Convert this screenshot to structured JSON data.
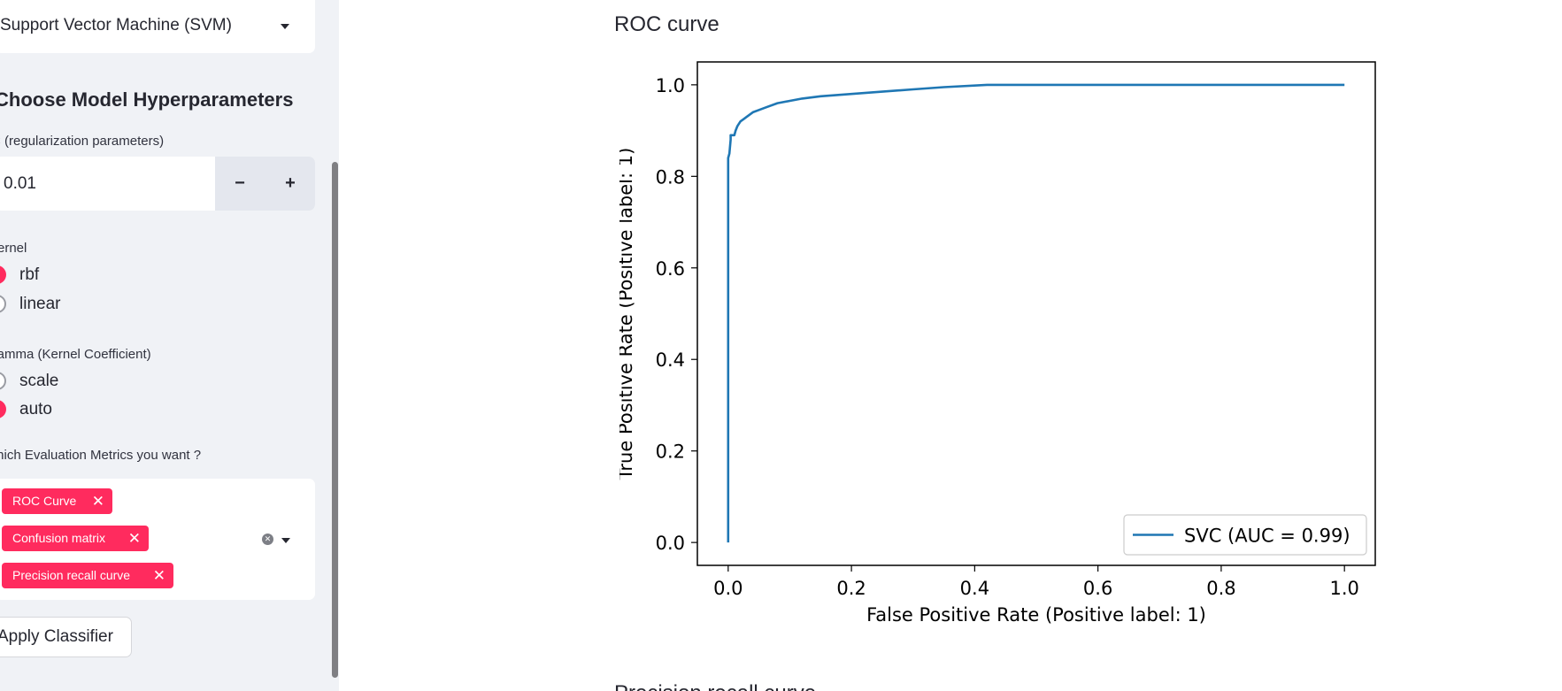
{
  "sidebar": {
    "classifier_select": {
      "value": "Support Vector Machine (SVM)"
    },
    "section_title": "Choose Model Hyperparameters",
    "c_param": {
      "label": "C (regularization parameters)",
      "value": "0.01",
      "minus": "−",
      "plus": "+"
    },
    "kernel": {
      "label": "Kernel",
      "options": [
        {
          "label": "rbf",
          "selected": true
        },
        {
          "label": "linear",
          "selected": false
        }
      ]
    },
    "gamma": {
      "label": "Gamma (Kernel Coefficient)",
      "options": [
        {
          "label": "scale",
          "selected": false
        },
        {
          "label": "auto",
          "selected": true
        }
      ]
    },
    "metrics": {
      "label": "Which Evaluation Metrics you want ?",
      "selected": [
        "ROC Curve",
        "Confusion matrix",
        "Precision recall curve"
      ],
      "remove_glyph": "✕",
      "clear_glyph": "✕"
    },
    "apply_button": "Apply Classifier"
  },
  "main": {
    "roc_section_title": "ROC curve",
    "next_section_title": "Precision recall curve"
  },
  "colors": {
    "accent": "#ff2b5e",
    "sidebar_bg": "#f0f2f6",
    "line": "#1f77b4"
  },
  "chart_data": {
    "type": "line",
    "title": "",
    "xlabel": "False Positive Rate (Positive label: 1)",
    "ylabel": "True Positive Rate (Positive label: 1)",
    "xlim": [
      -0.05,
      1.05
    ],
    "ylim": [
      -0.05,
      1.05
    ],
    "xticks": [
      "0.0",
      "0.2",
      "0.4",
      "0.6",
      "0.8",
      "1.0"
    ],
    "yticks": [
      "0.0",
      "0.2",
      "0.4",
      "0.6",
      "0.8",
      "1.0"
    ],
    "legend_position": "lower-right",
    "grid": false,
    "series": [
      {
        "name": "SVC (AUC = 0.99)",
        "x": [
          0.0,
          0.0,
          0.0,
          0.002,
          0.004,
          0.004,
          0.01,
          0.012,
          0.015,
          0.02,
          0.025,
          0.03,
          0.04,
          0.05,
          0.06,
          0.08,
          0.1,
          0.12,
          0.15,
          0.2,
          0.25,
          0.3,
          0.35,
          0.42,
          0.6,
          0.8,
          1.0
        ],
        "y": [
          0.0,
          0.83,
          0.84,
          0.85,
          0.88,
          0.89,
          0.89,
          0.9,
          0.91,
          0.92,
          0.925,
          0.93,
          0.94,
          0.945,
          0.95,
          0.96,
          0.965,
          0.97,
          0.975,
          0.98,
          0.985,
          0.99,
          0.995,
          1.0,
          1.0,
          1.0,
          1.0
        ]
      }
    ]
  }
}
